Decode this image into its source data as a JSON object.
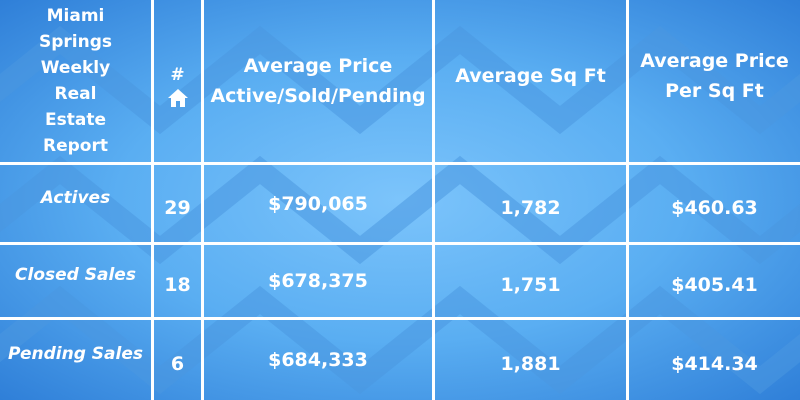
{
  "table": {
    "header": [
      "Miami Springs Weekly Real Estate Report",
      "#",
      "Average Price Active/Sold/Pending",
      "Average Sq Ft",
      "Average Price Per Sq Ft"
    ],
    "rows": [
      [
        "Actives",
        "29",
        "$790,065",
        "1,782",
        "$460.63"
      ],
      [
        "Closed Sales",
        "18",
        "$678,375",
        "1,751",
        "$405.41"
      ],
      [
        "Pending Sales",
        "6",
        "$684,333",
        "1,881",
        "$414.34"
      ]
    ]
  }
}
